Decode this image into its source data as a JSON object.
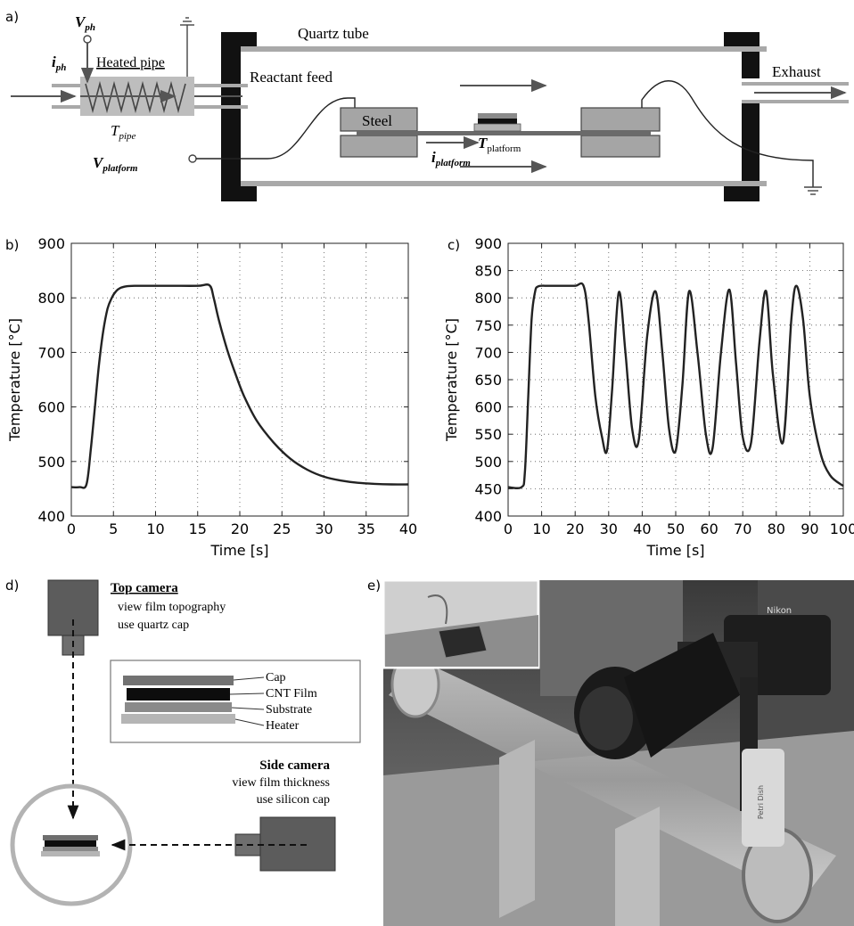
{
  "panels": {
    "a": {
      "label": "a)",
      "quartz_tube": "Quartz tube",
      "exhaust": "Exhaust",
      "reactant_feed": "Reactant feed",
      "heated_pipe": "Heated pipe",
      "steel": "Steel",
      "v_ph": "V",
      "v_ph_sub": "ph",
      "i_ph": "i",
      "i_ph_sub": "ph",
      "t_pipe": "T",
      "t_pipe_sub": "pipe",
      "v_platform": "V",
      "v_platform_sub": "platform",
      "i_platform": "i",
      "i_platform_sub": "platform",
      "t_platform": "T",
      "t_platform_sub": "platform"
    },
    "b": {
      "label": "b)"
    },
    "c": {
      "label": "c)"
    },
    "d": {
      "label": "d)",
      "top_camera": "Top camera",
      "top_line1": "view film topography",
      "top_line2": "use quartz cap",
      "side_camera": "Side camera",
      "side_line1": "view film thickness",
      "side_line2": "use silicon cap",
      "legend": [
        "Cap",
        "CNT Film",
        "Substrate",
        "Heater"
      ]
    },
    "e": {
      "label": "e)",
      "brand": "Nikon",
      "bottle_label": "Petri Dish"
    }
  },
  "chart_data": [
    {
      "type": "line",
      "panel": "b",
      "xlabel": "Time [s]",
      "ylabel": "Temperature  [°C]",
      "xlim": [
        0,
        40
      ],
      "ylim": [
        400,
        900
      ],
      "xticks": [
        0,
        5,
        10,
        15,
        20,
        25,
        30,
        35,
        40
      ],
      "yticks": [
        400,
        500,
        600,
        700,
        800,
        900
      ],
      "grid": true,
      "x": [
        0,
        1,
        1.8,
        2.3,
        2.8,
        3.3,
        3.8,
        4.3,
        4.8,
        5.3,
        5.8,
        6.5,
        7.5,
        9,
        12,
        15,
        16.4,
        16.9,
        17.5,
        18.5,
        19.5,
        20.5,
        22,
        24,
        26,
        28,
        30,
        32,
        34,
        36,
        38,
        40
      ],
      "y": [
        453,
        453,
        458,
        520,
        600,
        680,
        740,
        780,
        800,
        812,
        818,
        821,
        822,
        822,
        822,
        822,
        823,
        800,
        760,
        705,
        660,
        620,
        575,
        535,
        505,
        485,
        472,
        465,
        461,
        459,
        458,
        458
      ]
    },
    {
      "type": "line",
      "panel": "c",
      "xlabel": "Time [s]",
      "ylabel": "Temperature [°C]",
      "xlim": [
        0,
        100
      ],
      "ylim": [
        400,
        900
      ],
      "xticks": [
        0,
        10,
        20,
        30,
        40,
        50,
        60,
        70,
        80,
        90,
        100
      ],
      "yticks": [
        400,
        450,
        500,
        550,
        600,
        650,
        700,
        750,
        800,
        850,
        900
      ],
      "grid": true,
      "x": [
        0,
        4,
        5,
        6,
        7,
        8,
        9,
        12,
        16,
        20,
        22.5,
        24,
        26,
        28,
        29.5,
        31,
        33,
        35,
        37,
        39,
        41.5,
        44,
        46,
        48,
        50,
        52,
        54,
        56.5,
        59,
        61,
        63.5,
        66,
        68,
        70,
        72.5,
        75,
        77,
        79,
        82,
        84.5,
        86,
        88,
        90,
        93,
        96,
        100
      ],
      "y": [
        453,
        453,
        480,
        620,
        760,
        810,
        821,
        822,
        822,
        822,
        822,
        760,
        620,
        545,
        520,
        630,
        810,
        700,
        560,
        540,
        730,
        812,
        700,
        560,
        520,
        640,
        812,
        700,
        550,
        525,
        700,
        815,
        680,
        545,
        535,
        720,
        812,
        660,
        535,
        760,
        822,
        760,
        620,
        520,
        475,
        455
      ]
    }
  ]
}
